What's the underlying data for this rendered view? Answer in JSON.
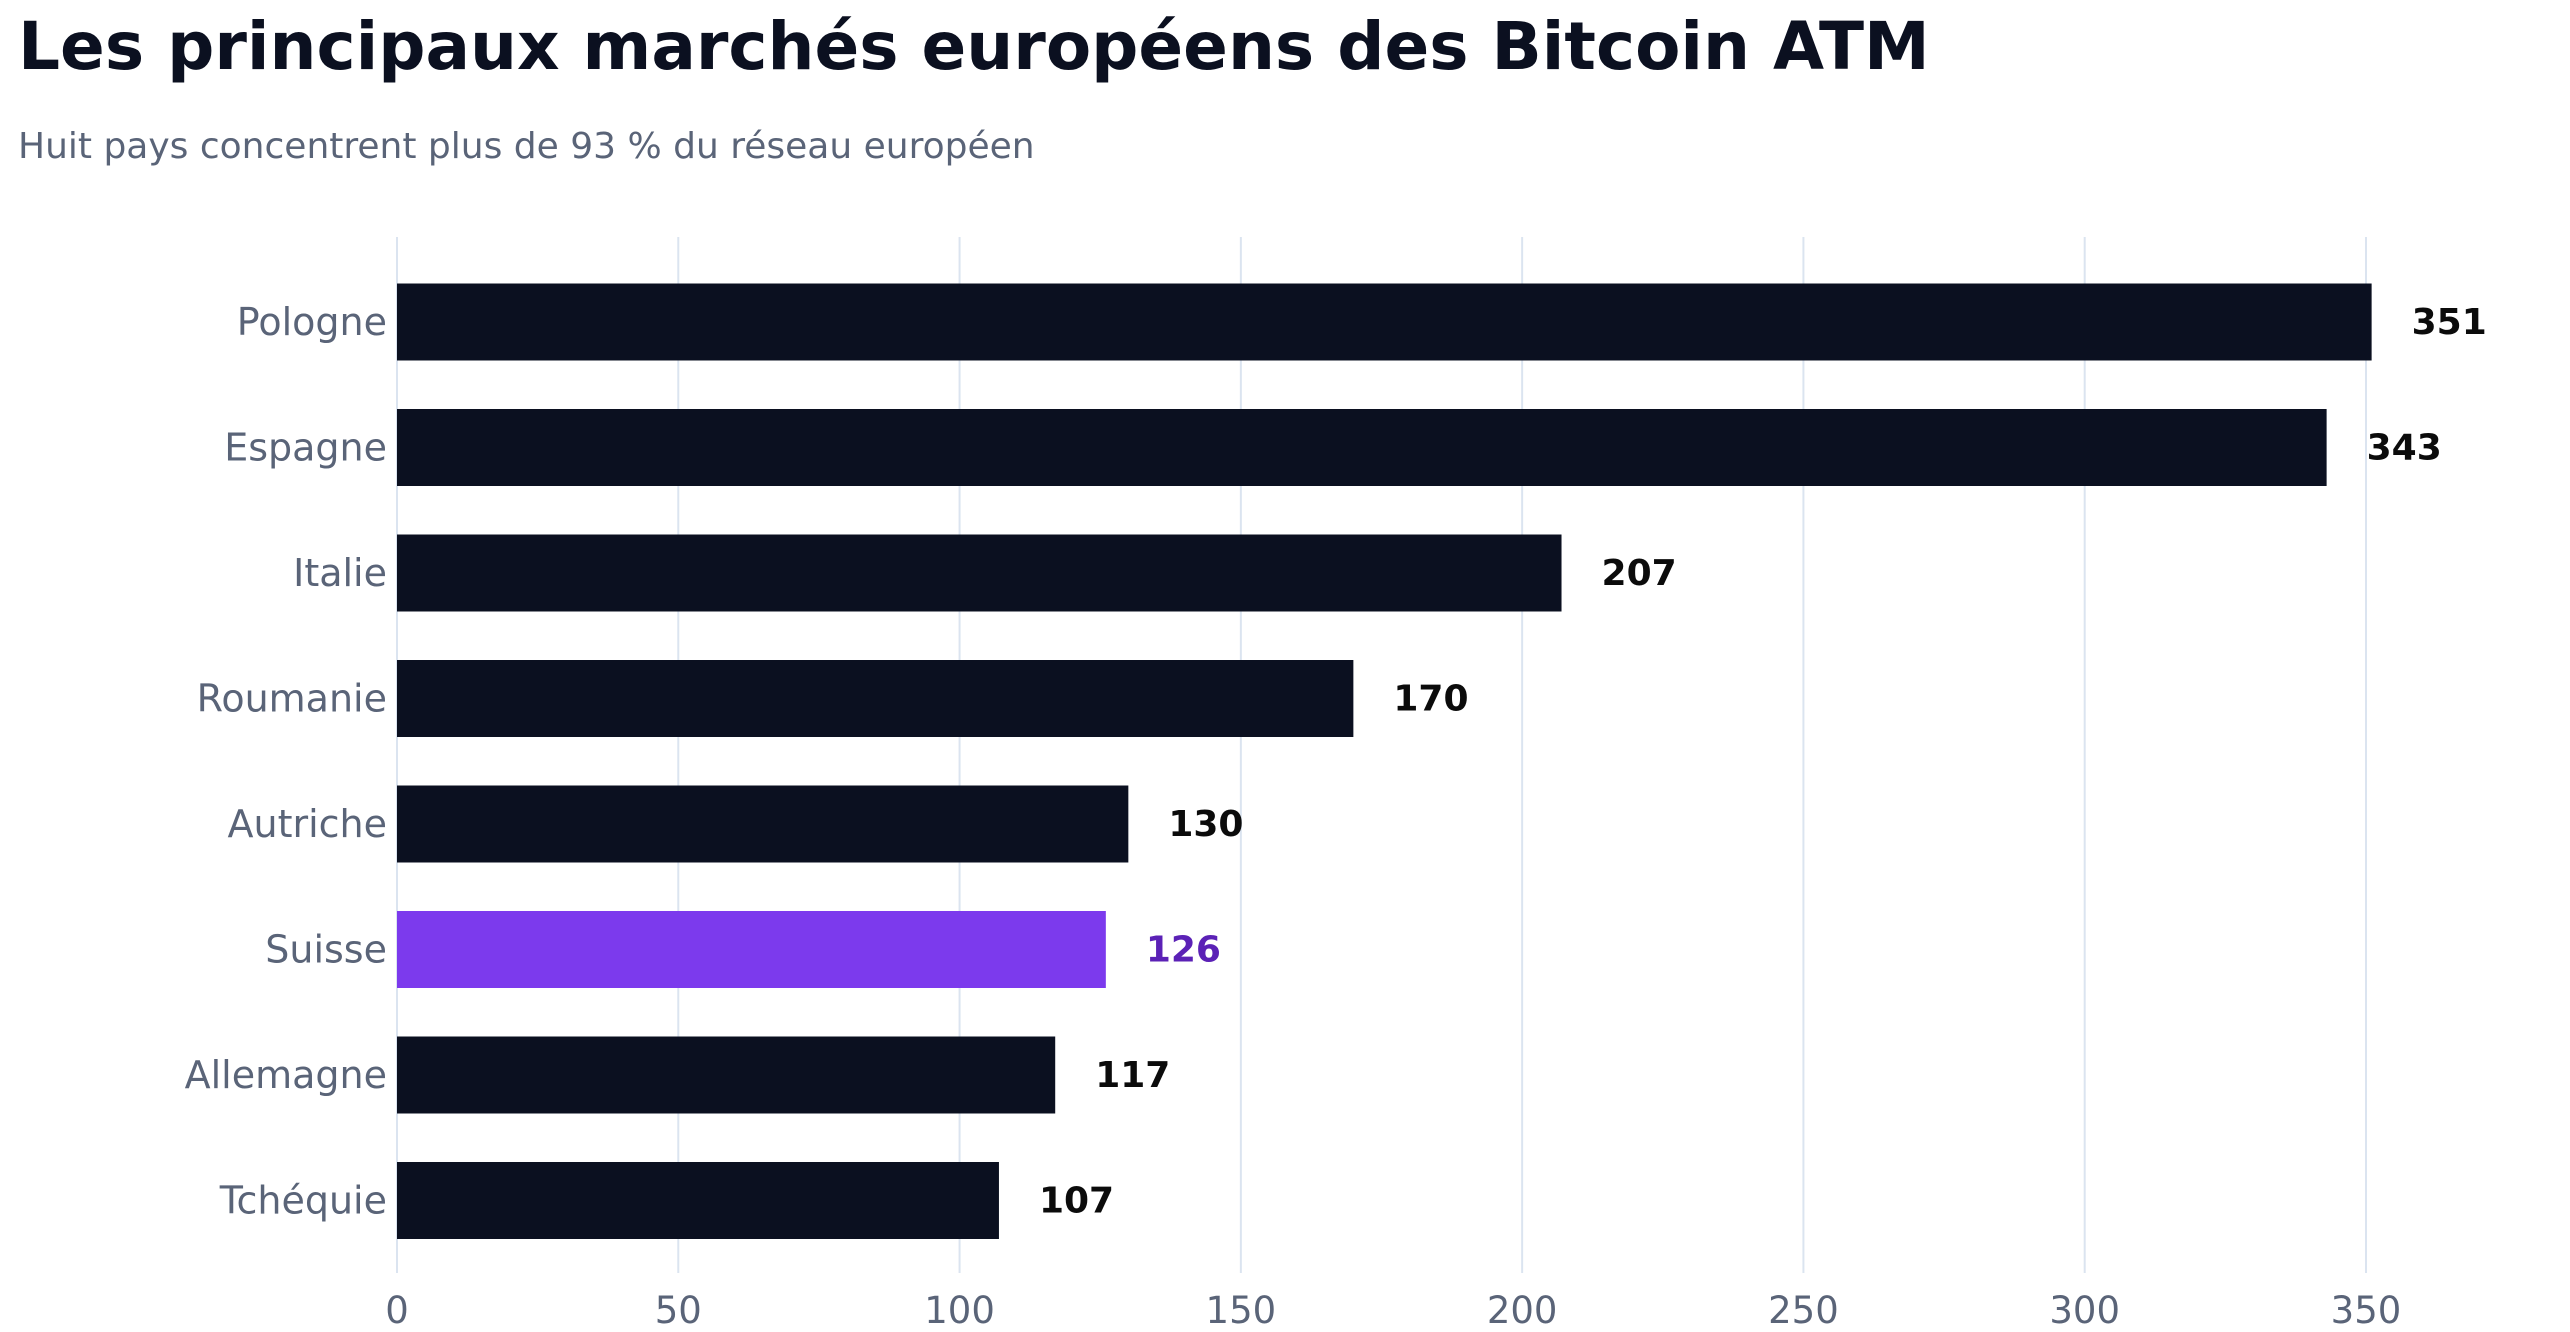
{
  "title": "Les principaux marchés européens des Bitcoin ATM",
  "subtitle": "Huit pays concentrent plus de 93 % du réseau européen",
  "colors": {
    "bar": "#0b1020",
    "highlight_bar": "#7c3aed",
    "highlight_label": "#5b21b6",
    "value_label": "#0b0b0b",
    "grid": "#dbe4f0",
    "axis_text": "#5a6478"
  },
  "chart_data": {
    "type": "bar",
    "orientation": "horizontal",
    "categories": [
      "Pologne",
      "Espagne",
      "Italie",
      "Roumanie",
      "Autriche",
      "Suisse",
      "Allemagne",
      "Tchéquie"
    ],
    "values": [
      351,
      343,
      207,
      170,
      130,
      126,
      117,
      107
    ],
    "highlight": "Suisse",
    "xlim": [
      0,
      370
    ],
    "xticks": [
      0,
      50,
      100,
      150,
      200,
      250,
      300,
      350
    ],
    "grid": "vertical",
    "data_labels": true
  }
}
